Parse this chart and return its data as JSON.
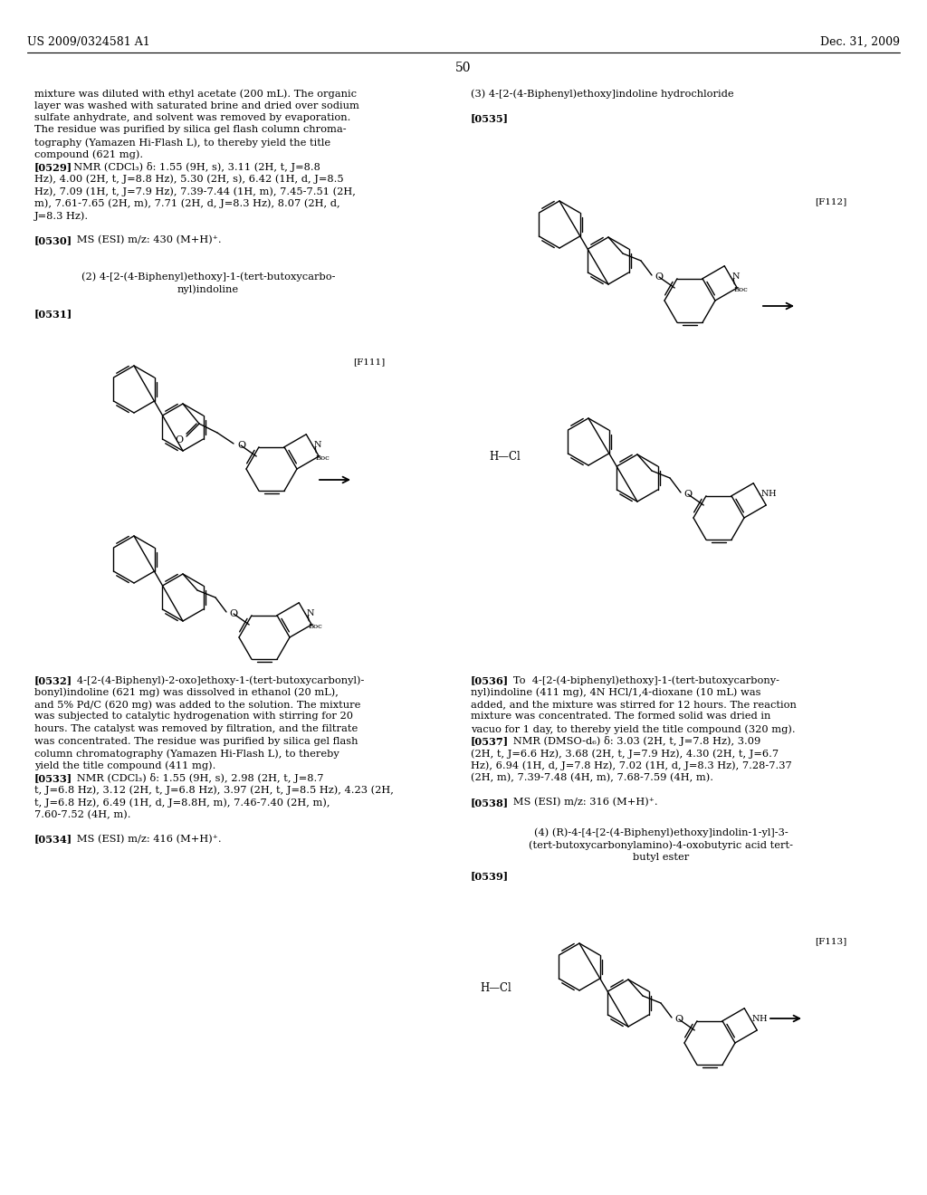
{
  "background_color": "#ffffff",
  "header_left": "US 2009/0324581 A1",
  "header_right": "Dec. 31, 2009",
  "page_number": "50"
}
